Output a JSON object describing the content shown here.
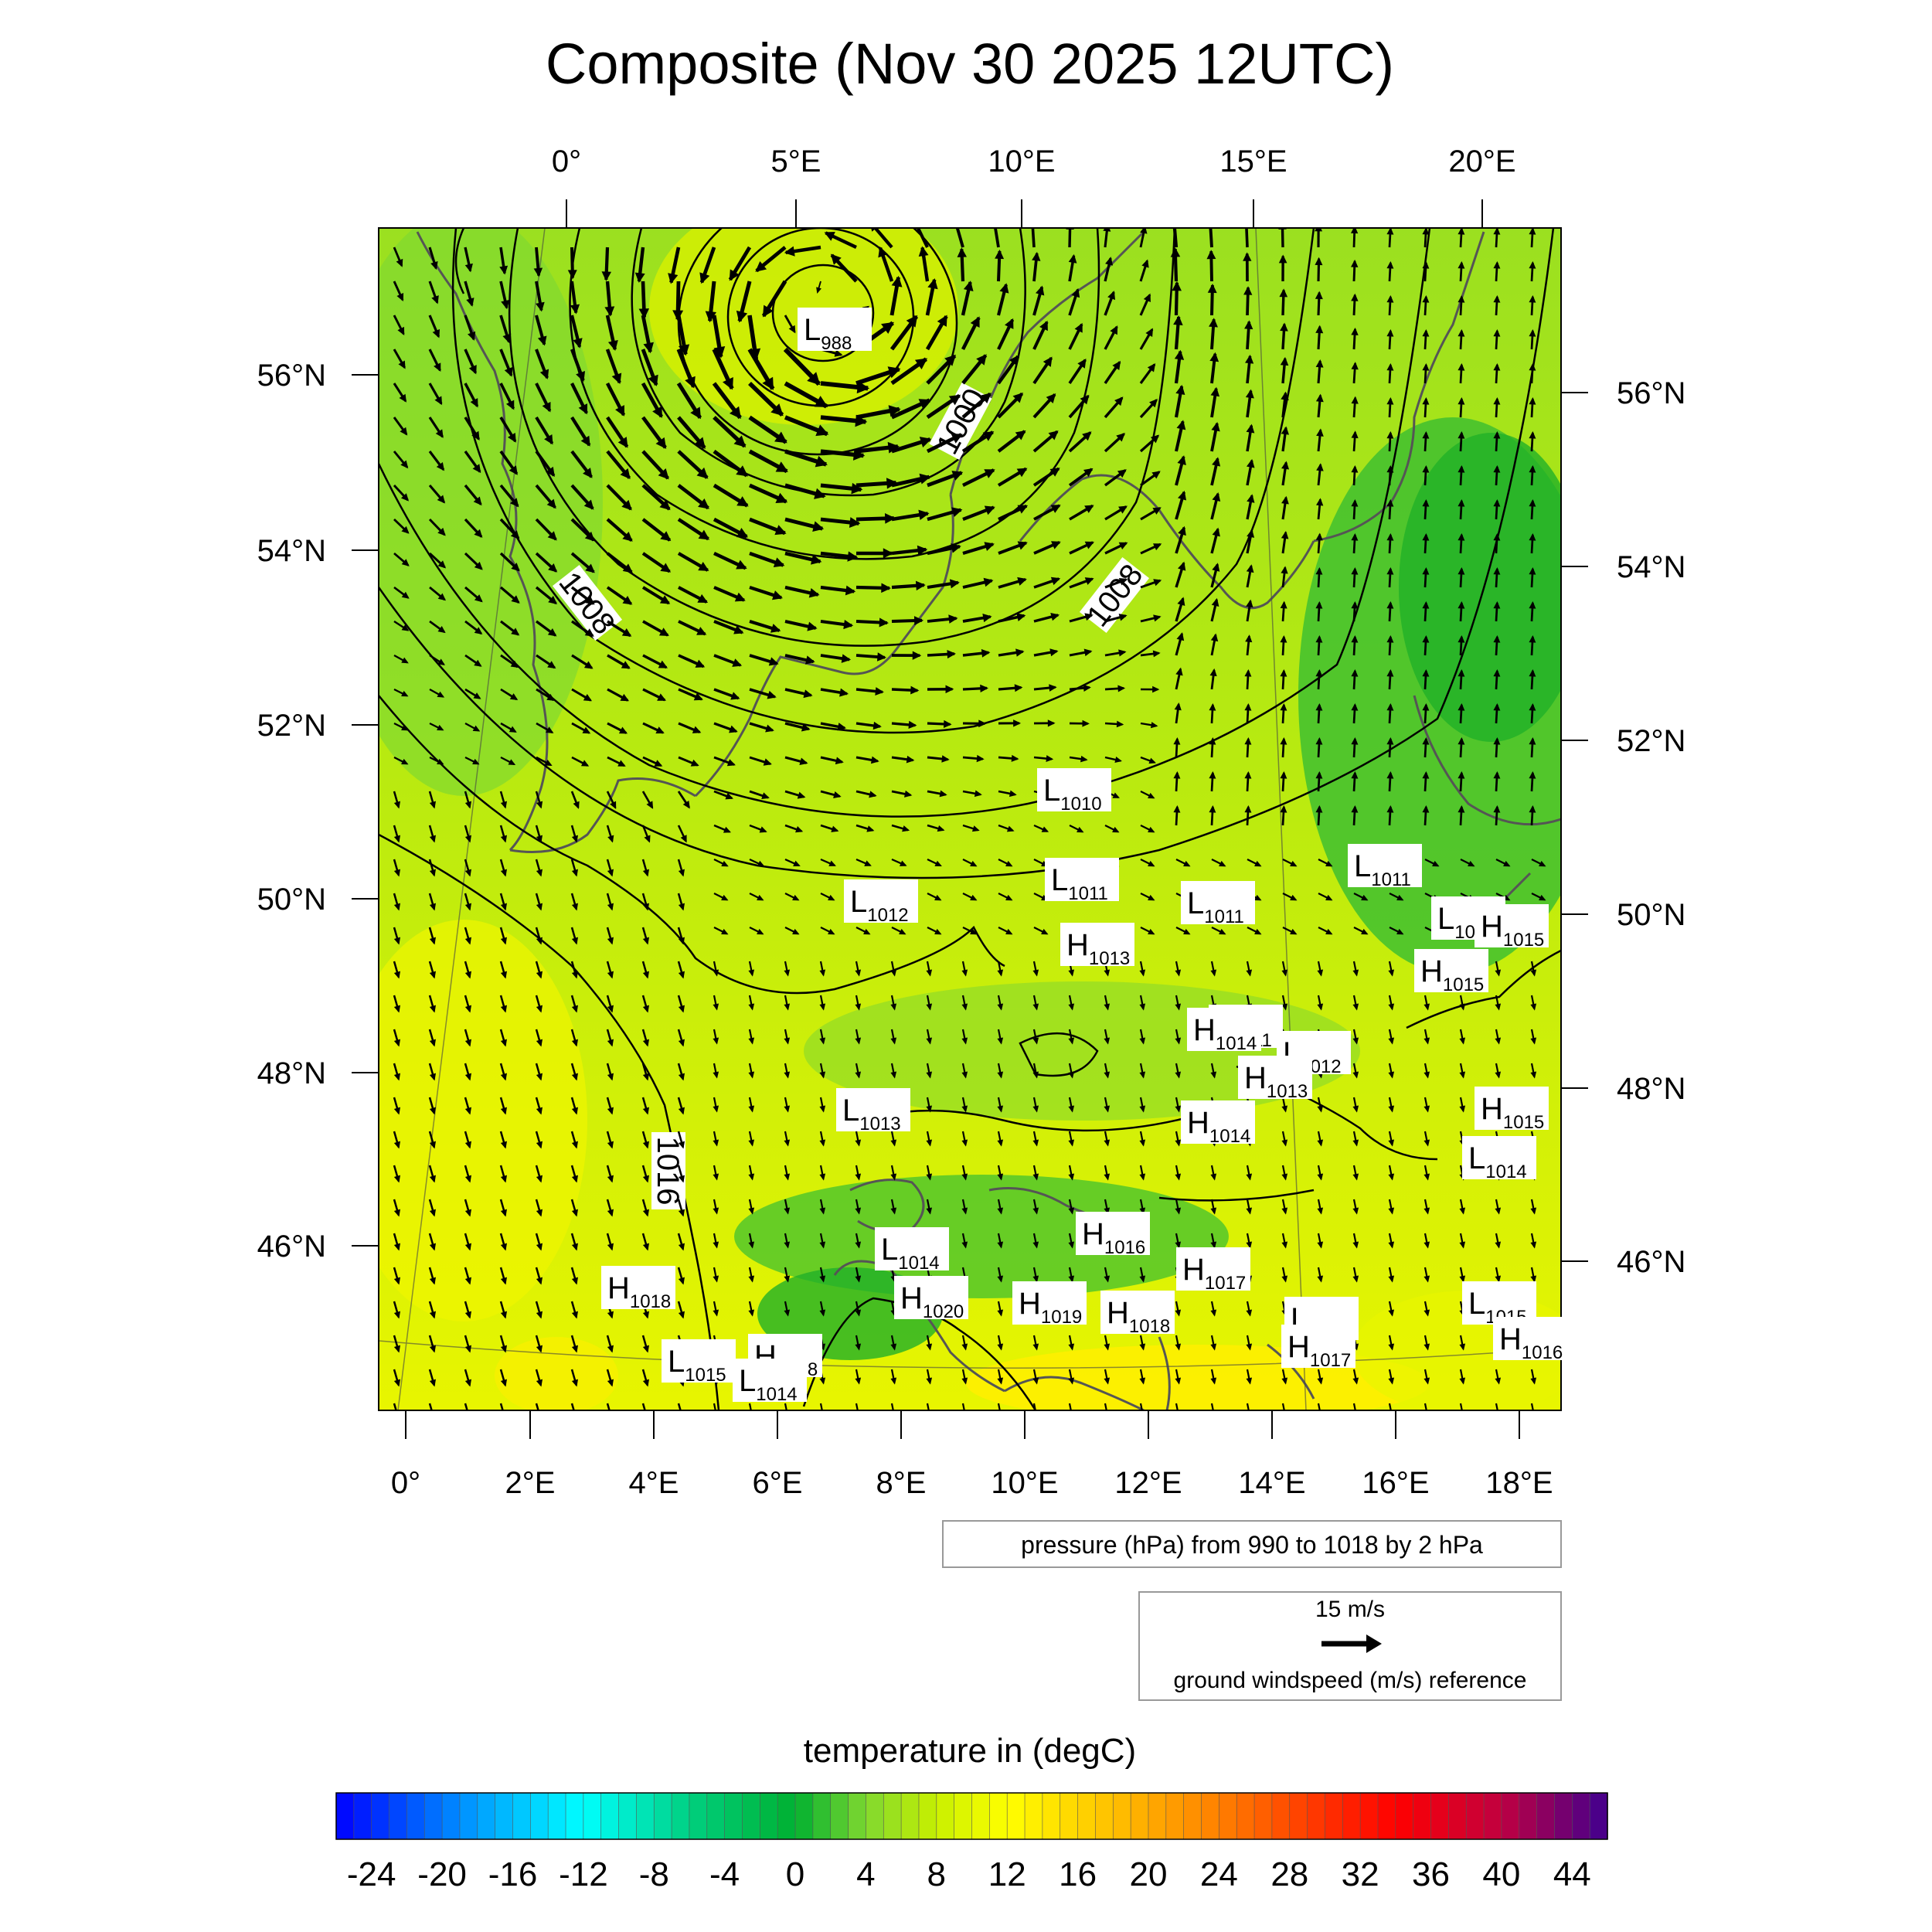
{
  "title": "Composite (Nov 30 2025 12UTC)",
  "top_lon_labels": [
    "0°",
    "5°E",
    "10°E",
    "15°E",
    "20°E"
  ],
  "bottom_lon_labels": [
    "0°",
    "2°E",
    "4°E",
    "6°E",
    "8°E",
    "10°E",
    "12°E",
    "14°E",
    "16°E",
    "18°E"
  ],
  "left_lat_labels": [
    "56°N",
    "54°N",
    "52°N",
    "50°N",
    "48°N",
    "46°N"
  ],
  "right_lat_labels": [
    "56°N",
    "54°N",
    "52°N",
    "50°N",
    "48°N",
    "46°N"
  ],
  "contour_labels": [
    "1000",
    "1008",
    "1008",
    "1016"
  ],
  "pressure_centers": [
    {
      "type": "L",
      "value": "988"
    },
    {
      "type": "L",
      "value": "1010"
    },
    {
      "type": "L",
      "value": "1011"
    },
    {
      "type": "L",
      "value": "1011"
    },
    {
      "type": "L",
      "value": "1011"
    },
    {
      "type": "L",
      "value": "1011"
    },
    {
      "type": "L",
      "value": "1012"
    },
    {
      "type": "L",
      "value": "1012"
    },
    {
      "type": "L",
      "value": "1013"
    },
    {
      "type": "L",
      "value": "1014"
    },
    {
      "type": "L",
      "value": "1014"
    },
    {
      "type": "L",
      "value": "1014"
    },
    {
      "type": "L",
      "value": "1015"
    },
    {
      "type": "L",
      "value": "1015"
    },
    {
      "type": "L",
      "value": "1011"
    },
    {
      "type": "H",
      "value": "1013"
    },
    {
      "type": "H",
      "value": "1013"
    },
    {
      "type": "H",
      "value": "1014"
    },
    {
      "type": "H",
      "value": "1014"
    },
    {
      "type": "H",
      "value": "1015"
    },
    {
      "type": "H",
      "value": "1015"
    },
    {
      "type": "H",
      "value": "1015"
    },
    {
      "type": "H",
      "value": "1016"
    },
    {
      "type": "H",
      "value": "1017"
    },
    {
      "type": "H",
      "value": "1018"
    },
    {
      "type": "H",
      "value": "1018"
    },
    {
      "type": "H",
      "value": "1018"
    },
    {
      "type": "H",
      "value": "1019"
    },
    {
      "type": "H",
      "value": "1020"
    },
    {
      "type": "H",
      "value": "1016"
    },
    {
      "type": "H",
      "value": "1017"
    },
    {
      "type": "L",
      "value": "1014"
    }
  ],
  "pressure_legend": "pressure (hPa) from 990 to 1018 by 2 hPa",
  "wind_reference": {
    "speed": "15 m/s",
    "label": "ground windspeed (m/s) reference"
  },
  "colorbar": {
    "title": "temperature in (degC)",
    "tick_labels": [
      "-24",
      "-20",
      "-16",
      "-12",
      "-8",
      "-4",
      "0",
      "4",
      "8",
      "12",
      "16",
      "20",
      "24",
      "28",
      "32",
      "36",
      "40",
      "44"
    ],
    "min": -26,
    "max": 46,
    "step": 2
  },
  "colors": {
    "cold_blue": "#0000ff",
    "cyan": "#00ffff",
    "green": "#10b020",
    "yellow_green": "#c8f000",
    "yellow": "#ffff00",
    "orange": "#ff8000",
    "red": "#ff0000",
    "purple": "#400090",
    "coastline": "#555555",
    "isobar": "#000000"
  }
}
